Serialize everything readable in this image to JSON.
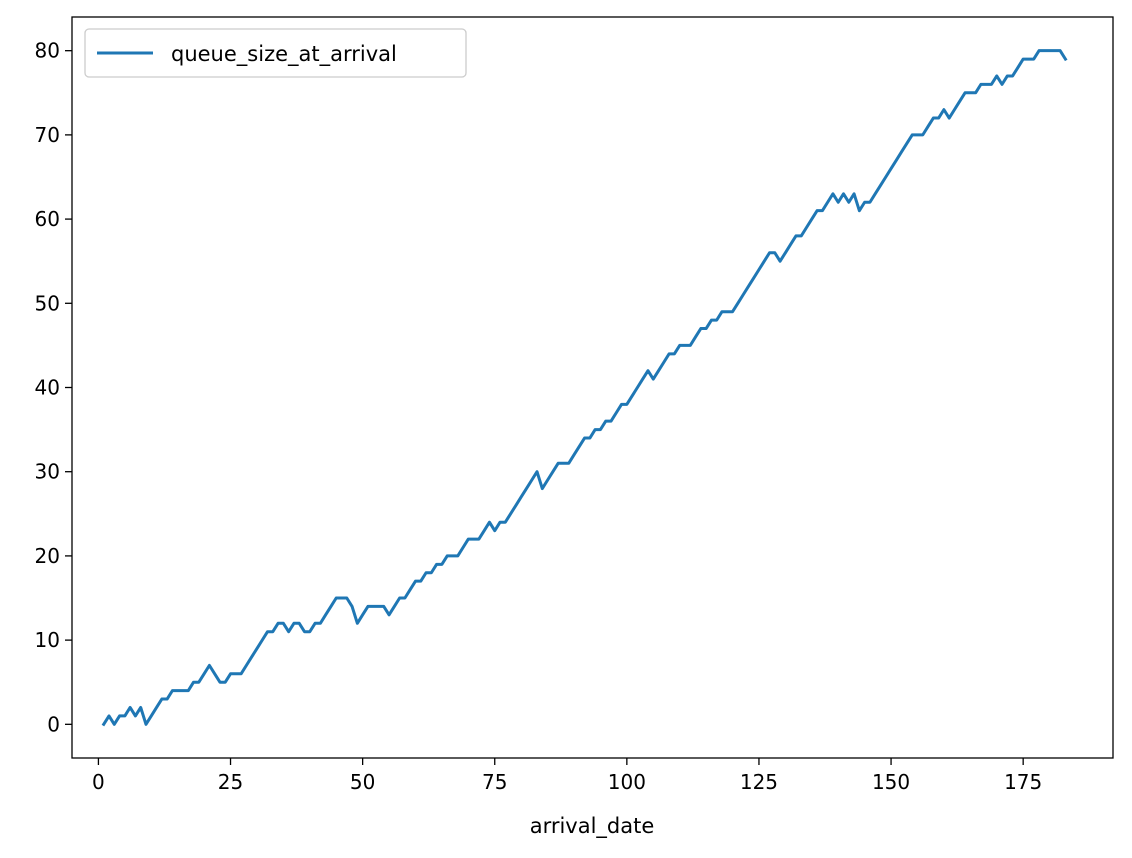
{
  "chart_data": {
    "type": "line",
    "title": "",
    "xlabel": "arrival_date",
    "ylabel": "",
    "xlim": [
      -5,
      192
    ],
    "ylim": [
      -4,
      84
    ],
    "xticks": [
      0,
      25,
      50,
      75,
      100,
      125,
      150,
      175
    ],
    "yticks": [
      0,
      10,
      20,
      30,
      40,
      50,
      60,
      70,
      80
    ],
    "grid": false,
    "legend": {
      "position": "top-left",
      "entries": [
        "queue_size_at_arrival"
      ]
    },
    "series": [
      {
        "name": "queue_size_at_arrival",
        "color": "#1f77b4",
        "x": [
          1,
          2,
          3,
          4,
          5,
          6,
          7,
          8,
          9,
          10,
          11,
          12,
          13,
          14,
          15,
          16,
          17,
          18,
          19,
          20,
          21,
          22,
          23,
          24,
          25,
          26,
          27,
          28,
          29,
          30,
          31,
          32,
          33,
          34,
          35,
          36,
          37,
          38,
          39,
          40,
          41,
          42,
          43,
          44,
          45,
          46,
          47,
          48,
          49,
          50,
          51,
          52,
          53,
          54,
          55,
          56,
          57,
          58,
          59,
          60,
          61,
          62,
          63,
          64,
          65,
          66,
          67,
          68,
          69,
          70,
          71,
          72,
          73,
          74,
          75,
          76,
          77,
          78,
          79,
          80,
          81,
          82,
          83,
          84,
          85,
          86,
          87,
          88,
          89,
          90,
          91,
          92,
          93,
          94,
          95,
          96,
          97,
          98,
          99,
          100,
          101,
          102,
          103,
          104,
          105,
          106,
          107,
          108,
          109,
          110,
          111,
          112,
          113,
          114,
          115,
          116,
          117,
          118,
          119,
          120,
          121,
          122,
          123,
          124,
          125,
          126,
          127,
          128,
          129,
          130,
          131,
          132,
          133,
          134,
          135,
          136,
          137,
          138,
          139,
          140,
          141,
          142,
          143,
          144,
          145,
          146,
          147,
          148,
          149,
          150,
          151,
          152,
          153,
          154,
          155,
          156,
          157,
          158,
          159,
          160,
          161,
          162,
          163,
          164,
          165,
          166,
          167,
          168,
          169,
          170,
          171,
          172,
          173,
          174,
          175,
          176,
          177,
          178,
          179,
          180,
          181,
          182,
          183
        ],
        "y": [
          0,
          1,
          0,
          1,
          1,
          2,
          1,
          2,
          0,
          1,
          2,
          3,
          3,
          4,
          4,
          4,
          4,
          5,
          5,
          6,
          7,
          6,
          5,
          5,
          6,
          6,
          6,
          7,
          8,
          9,
          10,
          11,
          11,
          12,
          12,
          11,
          12,
          12,
          11,
          11,
          12,
          12,
          13,
          14,
          15,
          15,
          15,
          14,
          12,
          13,
          14,
          14,
          14,
          14,
          13,
          14,
          15,
          15,
          16,
          17,
          17,
          18,
          18,
          19,
          19,
          20,
          20,
          20,
          21,
          22,
          22,
          22,
          23,
          24,
          23,
          24,
          24,
          25,
          26,
          27,
          28,
          29,
          30,
          28,
          29,
          30,
          31,
          31,
          31,
          32,
          33,
          34,
          34,
          35,
          35,
          36,
          36,
          37,
          38,
          38,
          39,
          40,
          41,
          42,
          41,
          42,
          43,
          44,
          44,
          45,
          45,
          45,
          46,
          47,
          47,
          48,
          48,
          49,
          49,
          49,
          50,
          51,
          52,
          53,
          54,
          55,
          56,
          56,
          55,
          56,
          57,
          58,
          58,
          59,
          60,
          61,
          61,
          62,
          63,
          62,
          63,
          62,
          63,
          61,
          62,
          62,
          63,
          64,
          65,
          66,
          67,
          68,
          69,
          70,
          70,
          70,
          71,
          72,
          72,
          73,
          72,
          73,
          74,
          75,
          75,
          75,
          76,
          76,
          76,
          77,
          76,
          77,
          77,
          78,
          79,
          79,
          79,
          80,
          80,
          80,
          80,
          80,
          79
        ]
      }
    ]
  }
}
